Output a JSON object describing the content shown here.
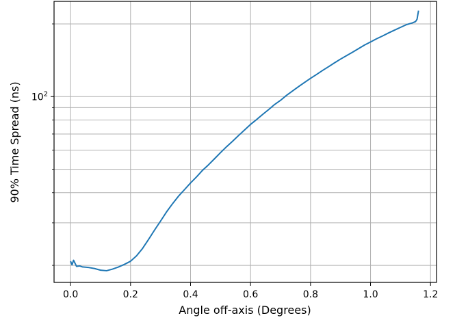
{
  "chart_data": {
    "type": "line",
    "title": "",
    "xlabel": "Angle off-axis (Degrees)",
    "ylabel": "90% Time Spread (ns)",
    "xlim": [
      -0.055,
      1.22
    ],
    "ylim": [
      17.0,
      248.0
    ],
    "yscale": "log",
    "grid": true,
    "x_ticks": [
      0.0,
      0.2,
      0.4,
      0.6,
      0.8,
      1.0,
      1.2
    ],
    "x_tick_labels": [
      "0.0",
      "0.2",
      "0.4",
      "0.6",
      "0.8",
      "1.0",
      "1.2"
    ],
    "y_major_ticks": [
      100
    ],
    "y_major_tick_label_base": "10",
    "y_major_tick_label_exp": "2",
    "y_minor_ticks": [
      20,
      30,
      40,
      50,
      60,
      70,
      80,
      90,
      200
    ],
    "colors": {
      "line": "#1f77b4",
      "grid": "#b0b0b0",
      "axes": "#000000"
    },
    "series": [
      {
        "x": [
          0.0,
          0.005,
          0.01,
          0.02,
          0.03,
          0.04,
          0.06,
          0.08,
          0.1,
          0.12,
          0.14,
          0.16,
          0.18,
          0.2,
          0.22,
          0.24,
          0.26,
          0.28,
          0.3,
          0.32,
          0.34,
          0.36,
          0.38,
          0.4,
          0.42,
          0.44,
          0.46,
          0.48,
          0.5,
          0.52,
          0.54,
          0.56,
          0.58,
          0.6,
          0.62,
          0.64,
          0.66,
          0.68,
          0.7,
          0.72,
          0.74,
          0.76,
          0.78,
          0.8,
          0.82,
          0.84,
          0.86,
          0.88,
          0.9,
          0.92,
          0.94,
          0.96,
          0.98,
          1.0,
          1.02,
          1.04,
          1.06,
          1.08,
          1.1,
          1.12,
          1.14,
          1.15,
          1.155,
          1.16
        ],
        "y": [
          20.8,
          20.1,
          21.0,
          19.8,
          19.9,
          19.7,
          19.6,
          19.4,
          19.1,
          19.0,
          19.3,
          19.7,
          20.2,
          20.8,
          21.9,
          23.5,
          25.6,
          28.0,
          30.5,
          33.3,
          36.0,
          38.7,
          41.2,
          43.9,
          46.5,
          49.5,
          52.2,
          55.3,
          58.6,
          62.0,
          65.3,
          69.0,
          72.7,
          76.7,
          80.3,
          84.3,
          88.3,
          92.7,
          96.5,
          101.2,
          105.5,
          110.0,
          114.5,
          119.0,
          123.5,
          128.3,
          133.0,
          138.0,
          143.0,
          147.8,
          152.7,
          158.0,
          163.5,
          168.4,
          173.5,
          178.3,
          183.5,
          188.5,
          193.6,
          198.7,
          202.0,
          204.5,
          209.0,
          227.0
        ]
      }
    ]
  }
}
